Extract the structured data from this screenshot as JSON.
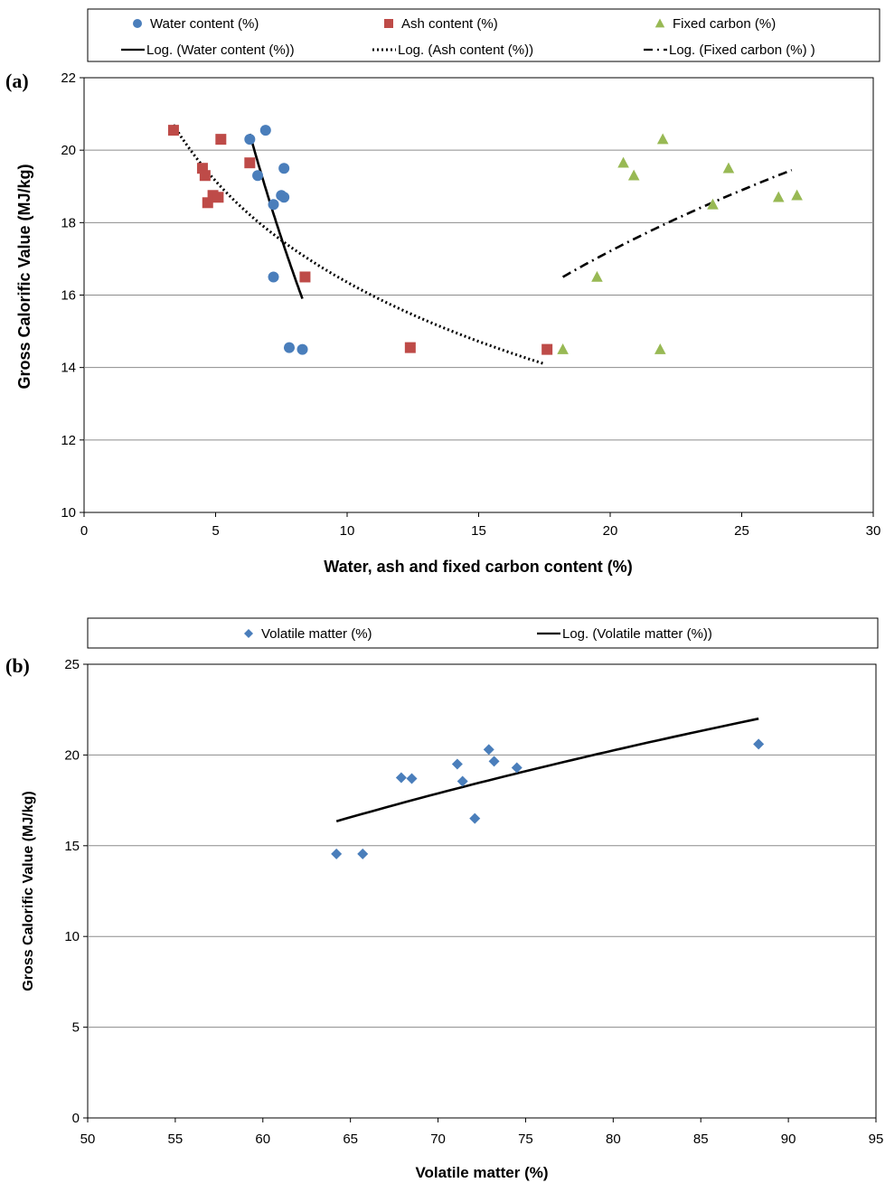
{
  "chart_data": [
    {
      "panel_label": "(a)",
      "type": "scatter",
      "xlabel": "Water, ash and fixed carbon content (%)",
      "ylabel": "Gross Calorific Value (MJ/kg)",
      "xlim": [
        0,
        30
      ],
      "ylim": [
        10,
        22
      ],
      "x_ticks": [
        0,
        5,
        10,
        15,
        20,
        25,
        30
      ],
      "y_ticks": [
        10,
        12,
        14,
        16,
        18,
        20,
        22
      ],
      "grid": "horizontal",
      "legend_position": "top",
      "series": [
        {
          "name": "Water content (%)",
          "marker": "circle",
          "color": "#4a7ebb",
          "x": [
            6.3,
            6.9,
            6.6,
            7.6,
            7.5,
            7.6,
            7.2,
            7.2,
            7.8,
            8.3
          ],
          "y": [
            20.3,
            20.55,
            19.3,
            19.5,
            18.75,
            18.7,
            18.5,
            16.5,
            14.55,
            14.5
          ]
        },
        {
          "name": "Ash content (%)",
          "marker": "square",
          "color": "#be4b48",
          "x": [
            3.4,
            4.5,
            4.6,
            4.9,
            5.1,
            4.7,
            5.2,
            6.3,
            8.4,
            12.4,
            17.6
          ],
          "y": [
            20.55,
            19.5,
            19.3,
            18.75,
            18.7,
            18.55,
            20.3,
            19.65,
            16.5,
            14.55,
            14.5
          ]
        },
        {
          "name": "Fixed carbon (%)",
          "marker": "triangle",
          "color": "#98b954",
          "x": [
            18.2,
            19.5,
            20.5,
            20.9,
            21.9,
            22.0,
            23.9,
            24.5,
            26.4,
            27.1
          ],
          "y": [
            14.5,
            16.5,
            19.65,
            19.3,
            14.5,
            20.3,
            18.5,
            19.5,
            18.7,
            18.75
          ]
        }
      ],
      "trendlines": [
        {
          "name": "Log. (Water content (%))",
          "style": "solid",
          "x": [
            6.3,
            8.3
          ],
          "y": [
            20.45,
            15.9
          ]
        },
        {
          "name": "Log. (Ash content (%))",
          "style": "dotted",
          "x": [
            3.4,
            17.5
          ],
          "y": [
            20.7,
            14.1
          ]
        },
        {
          "name": "Log. (Fixed carbon (%) )",
          "style": "dashdot",
          "x": [
            18.2,
            26.9
          ],
          "y": [
            16.5,
            19.45
          ]
        }
      ]
    },
    {
      "panel_label": "(b)",
      "type": "scatter",
      "xlabel": "Volatile matter (%)",
      "ylabel": "Gross Calorific Value (MJ/kg)",
      "xlim": [
        50,
        95
      ],
      "ylim": [
        0,
        25
      ],
      "x_ticks": [
        50,
        55,
        60,
        65,
        70,
        75,
        80,
        85,
        90,
        95
      ],
      "y_ticks": [
        0,
        5,
        10,
        15,
        20,
        25
      ],
      "grid": "horizontal",
      "legend_position": "top",
      "series": [
        {
          "name": "Volatile matter (%)",
          "marker": "diamond",
          "color": "#4a7ebb",
          "x": [
            64.2,
            65.7,
            67.9,
            68.5,
            71.1,
            71.4,
            72.1,
            72.9,
            73.2,
            74.5,
            88.3
          ],
          "y": [
            14.55,
            14.55,
            18.75,
            18.7,
            19.5,
            18.55,
            16.5,
            20.3,
            19.65,
            19.3,
            20.6
          ]
        }
      ],
      "trendlines": [
        {
          "name": "Log. (Volatile matter (%))",
          "style": "solid",
          "x": [
            64.2,
            88.3
          ],
          "y": [
            16.35,
            22.0
          ]
        }
      ]
    }
  ]
}
